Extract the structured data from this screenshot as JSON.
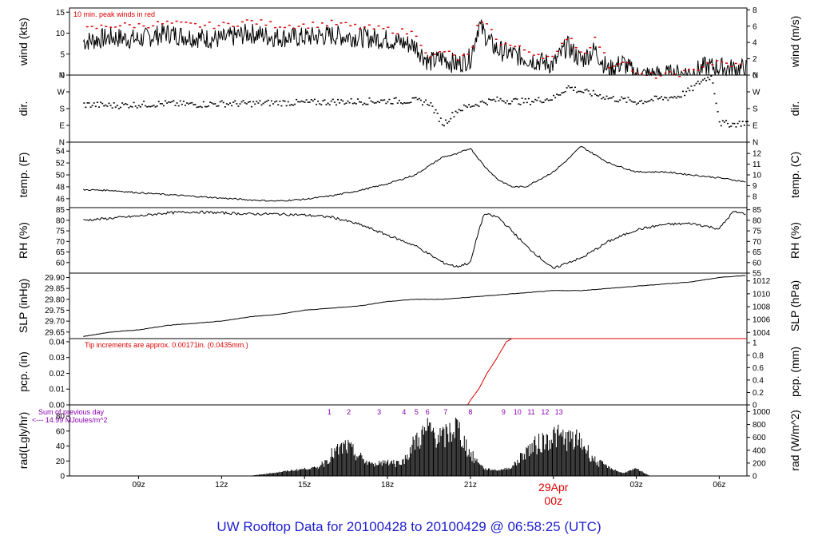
{
  "colors": {
    "line": "#000000",
    "peak": "#dd0000",
    "note": "#dd0000",
    "rad_note": "#8a00b0",
    "title": "#1f1fd0",
    "date": "#dd0000"
  },
  "title": "UW Rooftop Data for 20100428  to  20100429 @ 06:58:25  (UTC)",
  "x_axis": {
    "hour_ticks": [
      9,
      12,
      15,
      18,
      21,
      24,
      27,
      30
    ],
    "tick_labels": [
      "09z",
      "12z",
      "15z",
      "18z",
      "21z",
      "",
      "03z",
      "06z"
    ],
    "date_label": "29Apr",
    "date_sublabel": "00z",
    "date_hour": 24
  },
  "panels": {
    "wind": {
      "ylabel_left": "wind (kts)",
      "ylabel_right": "wind (m/s)",
      "ylim": [
        0,
        16
      ],
      "left_ticks": [
        0,
        5,
        10,
        15
      ],
      "right_ticks": [
        0,
        2,
        4,
        6,
        8
      ],
      "note": "10 min. peak winds in red"
    },
    "dir": {
      "ylabel_left": "dir.",
      "ylabel_right": "dir.",
      "ylim": [
        0,
        360
      ],
      "tick_values": [
        0,
        90,
        180,
        270,
        360
      ],
      "tick_labels": [
        "N",
        "E",
        "S",
        "W",
        "N"
      ]
    },
    "temp": {
      "ylabel_left": "temp. (F)",
      "ylabel_right": "temp. (C)",
      "ylim": [
        44.5,
        55.5
      ],
      "left_ticks": [
        46,
        48,
        50,
        52,
        54
      ],
      "right_ticks": [
        8,
        9,
        10,
        11,
        12
      ]
    },
    "rh": {
      "ylabel_left": "RH (%)",
      "ylabel_right": "RH (%)",
      "ylim": [
        55,
        86
      ],
      "left_ticks": [
        60,
        65,
        70,
        75,
        80,
        85
      ],
      "right_ticks": [
        55,
        60,
        65,
        70,
        75,
        80,
        85
      ]
    },
    "slp": {
      "ylabel_left": "SLP (inHg)",
      "ylabel_right": "SLP (hPa)",
      "ylim": [
        29.62,
        29.92
      ],
      "left_ticks": [
        "29.65",
        "29.70",
        "29.75",
        "29.80",
        "29.85",
        "29.90"
      ],
      "right_ticks": [
        1004,
        1006,
        1008,
        1010,
        1012
      ]
    },
    "pcp": {
      "ylabel_left": "pcp. (in)",
      "ylabel_right": "pcp. (mm)",
      "ylim": [
        0,
        0.042
      ],
      "left_ticks": [
        "0.00",
        "0.01",
        "0.02",
        "0.03",
        "0.04"
      ],
      "right_ticks": [
        "0",
        "0.2",
        "0.4",
        "0.6",
        "0.8",
        "1"
      ],
      "note": "Tip increments are approx. 0.00171in. (0.0435mm.)"
    },
    "rad": {
      "ylabel_left": "rad(Lgly/hr)",
      "ylabel_right": "rad (W/m^2)",
      "ylim": [
        0,
        95
      ],
      "left_ticks": [
        0,
        20,
        40,
        60,
        80
      ],
      "right_ticks": [
        0,
        200,
        400,
        600,
        800,
        1000
      ],
      "note_line1": "Sum of previous day",
      "note_line2": "<--- 14.99 MJoules/m^2",
      "markers": [
        "1",
        "2",
        "3",
        "4",
        "5",
        "6",
        "7",
        "8",
        "9",
        "10",
        "11",
        "12",
        "13"
      ]
    }
  },
  "chart_data": [
    {
      "type": "line",
      "name": "wind",
      "x": [
        7,
        8,
        9,
        10,
        11,
        12,
        13,
        14,
        15,
        16,
        17,
        18,
        19,
        19.5,
        20,
        20.5,
        21,
        21.3,
        21.8,
        22,
        22.5,
        23,
        24,
        24.5,
        25,
        25.5,
        26,
        26.5,
        27,
        28,
        29,
        29.5,
        30,
        30.5,
        31
      ],
      "y": [
        8,
        9,
        8.5,
        10,
        9,
        8.5,
        10,
        9,
        9,
        9.5,
        9,
        8.5,
        7,
        3,
        4,
        2.5,
        4,
        12,
        7,
        6,
        5,
        4,
        2.5,
        7,
        3.5,
        6,
        1,
        3,
        0,
        0,
        0.5,
        2,
        1.8,
        1.5,
        1.5
      ],
      "peak_y": [
        11,
        12,
        12,
        12.5,
        12,
        12,
        13,
        12,
        12,
        12.5,
        11.5,
        11,
        10,
        4,
        6,
        4,
        5,
        14,
        10,
        8,
        7,
        6,
        4,
        10,
        5,
        9,
        2,
        4,
        0,
        0,
        1,
        3,
        3,
        2.5,
        2.5
      ]
    },
    {
      "type": "scatter",
      "name": "dir",
      "x": [
        7,
        8,
        9,
        10,
        11,
        12,
        13,
        14,
        15,
        16,
        17,
        18,
        19,
        19.5,
        19.8,
        20,
        20.5,
        21,
        21.5,
        22,
        23,
        24,
        24.5,
        25,
        25.5,
        26,
        27,
        28,
        28.5,
        29,
        29.3,
        29.5,
        29.7,
        30,
        30.5,
        31
      ],
      "y": [
        205,
        200,
        205,
        210,
        205,
        210,
        210,
        215,
        215,
        220,
        222,
        225,
        225,
        215,
        140,
        100,
        175,
        200,
        220,
        230,
        220,
        240,
        300,
        275,
        260,
        240,
        220,
        240,
        250,
        290,
        330,
        345,
        360,
        105,
        100,
        110
      ]
    },
    {
      "type": "line",
      "name": "temp",
      "x": [
        7,
        8,
        9,
        10,
        11,
        12,
        13,
        14,
        15,
        16,
        17,
        18,
        19,
        20,
        20.5,
        21,
        21.5,
        22,
        22.5,
        23,
        24,
        24.5,
        25,
        26,
        27,
        28,
        29,
        30,
        31
      ],
      "y": [
        47.5,
        47.4,
        47,
        46.7,
        46.4,
        46.1,
        45.8,
        45.6,
        45.9,
        46.5,
        47.4,
        48.5,
        50,
        53,
        53.5,
        54.5,
        51.5,
        49.2,
        48,
        48,
        50.5,
        52.5,
        54.8,
        52,
        50.5,
        50.5,
        50,
        49.5,
        48.8
      ]
    },
    {
      "type": "line",
      "name": "rh",
      "x": [
        7,
        8,
        9,
        10,
        11,
        12,
        13,
        14,
        15,
        16,
        17,
        18,
        19,
        20,
        20.5,
        21,
        21.3,
        21.5,
        22,
        22.5,
        23,
        24,
        24.5,
        25,
        26,
        27,
        28,
        29,
        30,
        30.5,
        31
      ],
      "y": [
        80,
        81,
        82,
        83.5,
        84,
        83.5,
        83,
        83,
        82.5,
        81.5,
        78,
        73,
        68,
        60,
        58,
        60,
        75,
        83,
        81.5,
        75,
        68,
        57,
        60,
        62,
        70,
        75.5,
        78,
        78.5,
        76,
        84,
        83
      ]
    },
    {
      "type": "line",
      "name": "slp",
      "x": [
        7,
        8,
        9,
        10,
        11,
        12,
        13,
        14,
        15,
        16,
        17,
        18,
        19,
        20,
        21,
        22,
        23,
        24,
        25,
        26,
        27,
        28,
        29,
        30,
        31
      ],
      "y": [
        29.63,
        29.65,
        29.66,
        29.68,
        29.69,
        29.7,
        29.72,
        29.73,
        29.75,
        29.76,
        29.77,
        29.79,
        29.8,
        29.8,
        29.81,
        29.82,
        29.83,
        29.84,
        29.84,
        29.85,
        29.86,
        29.87,
        29.88,
        29.9,
        29.91
      ]
    },
    {
      "type": "line",
      "name": "pcp",
      "x": [
        7,
        20.9,
        21.0,
        21.3,
        21.6,
        21.9,
        22.1,
        22.3,
        22.5,
        31
      ],
      "y": [
        0,
        0,
        0.003,
        0.01,
        0.02,
        0.028,
        0.034,
        0.04,
        0.042,
        0.042
      ]
    },
    {
      "type": "area",
      "name": "rad",
      "x": [
        13,
        14,
        15,
        15.5,
        16,
        16.5,
        17,
        17.5,
        18,
        18.5,
        19,
        19.5,
        20,
        20.5,
        21,
        21.5,
        22,
        22.5,
        23,
        24,
        25,
        25.5,
        26,
        26.5,
        27,
        27.5
      ],
      "y": [
        0,
        5,
        10,
        12,
        35,
        48,
        30,
        15,
        25,
        18,
        55,
        75,
        60,
        80,
        35,
        10,
        8,
        12,
        40,
        65,
        55,
        25,
        12,
        4,
        10,
        0
      ]
    }
  ]
}
